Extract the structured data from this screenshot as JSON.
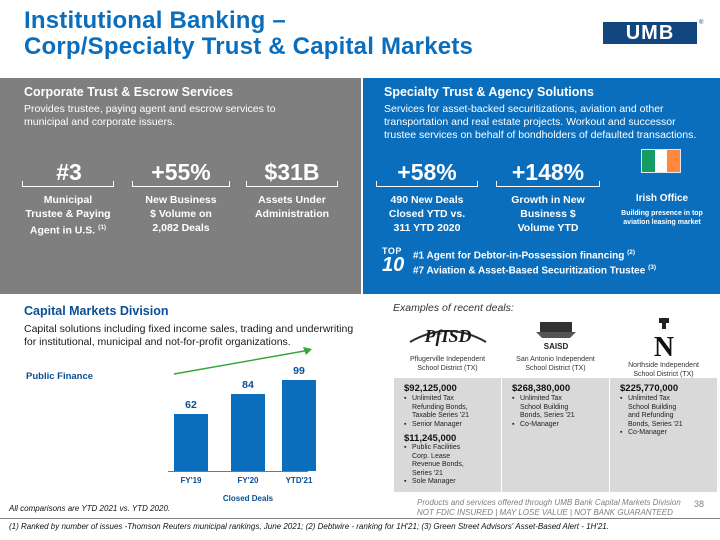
{
  "header": {
    "title_line1": "Institutional Banking –",
    "title_line2": "Corp/Specialty Trust & Capital Markets",
    "logo": "UMB",
    "logo_reg": "®"
  },
  "corporate_trust": {
    "heading": "Corporate Trust & Escrow Services",
    "desc_line1": "Provides trustee, paying agent and escrow services to",
    "desc_line2": "municipal and corporate issuers.",
    "stats": [
      {
        "big": "#3",
        "line1": "Municipal",
        "line2": "Trustee & Paying",
        "line3": "Agent in U.S.",
        "sup": "(1)"
      },
      {
        "big": "+55%",
        "line1": "New Business",
        "line2": "$ Volume on",
        "line3": "2,082 Deals"
      },
      {
        "big": "$31B",
        "line1": "Assets Under",
        "line2": "Administration"
      }
    ]
  },
  "specialty_trust": {
    "heading": "Specialty Trust & Agency Solutions",
    "desc_line1": "Services for asset-backed securitizations, aviation and other",
    "desc_line2": "transportation and real estate projects. Workout and successor",
    "desc_line3": "trustee services on behalf of bondholders of defaulted transactions.",
    "stats": [
      {
        "big": "+58%",
        "line1": "490 New Deals",
        "line2": "Closed YTD vs.",
        "line3": "311 YTD 2020"
      },
      {
        "big": "+148%",
        "line1": "Growth in New",
        "line2": "Business $",
        "line3": "Volume YTD"
      }
    ],
    "irish_title": "Irish Office",
    "irish_sub_line1": "Building presence in top",
    "irish_sub_line2": "aviation leasing market",
    "flag_colors": [
      "#169b62",
      "#ffffff",
      "#ff883e"
    ],
    "top10_word": "TOP",
    "top10_num": "10",
    "rankings": [
      {
        "text": "#1 Agent for Debtor-in-Possession financing",
        "sup": "(2)"
      },
      {
        "text": "#7 Aviation & Asset-Based Securitization Trustee",
        "sup": "(3)"
      }
    ]
  },
  "capital_markets": {
    "heading": "Capital Markets Division",
    "desc_line1": "Capital solutions including fixed income sales, trading and underwriting",
    "desc_line2": "for institutional, municipal and not-for-profit organizations."
  },
  "chart_data": {
    "type": "bar",
    "title": "Public Finance",
    "xlabel": "Closed Deals",
    "ylabel": "",
    "categories": [
      "FY'19",
      "FY'20",
      "YTD'21"
    ],
    "values": [
      62,
      84,
      99
    ],
    "ylim": [
      0,
      110
    ],
    "grid": false,
    "bar_color": "#0a6ebd",
    "trend_arrow": true,
    "arrow_color": "#3aa63a"
  },
  "examples": {
    "label": "Examples of recent deals:",
    "deals": [
      {
        "logo": "PfISD",
        "issuer_line1": "Pflugerville Independent",
        "issuer_line2": "School District (TX)",
        "amount1": "$92,125,000",
        "bullets1": [
          "Unlimited Tax",
          "Refunding Bonds,",
          "Taxable Series '21"
        ],
        "bullets1b": [
          "Senior Manager"
        ],
        "amount2": "$11,245,000",
        "bullets2": [
          "Public Facilities",
          "Corp. Lease",
          "Revenue Bonds,",
          "Series '21"
        ],
        "bullets2b": [
          "Sole Manager"
        ]
      },
      {
        "logo": "SAISD",
        "issuer_line1": "San Antonio Independent",
        "issuer_line2": "School District (TX)",
        "amount1": "$268,380,000",
        "bullets1": [
          "Unlimited Tax",
          "School Building",
          "Bonds, Series '21"
        ],
        "bullets1b": [
          "Co-Manager"
        ]
      },
      {
        "logo": "N",
        "issuer_line1": "Northside Independent",
        "issuer_line2": "School District (TX)",
        "amount1": "$225,770,000",
        "bullets1": [
          "Unlimited Tax",
          "School Building",
          "and Refunding",
          "Bonds, Series '21"
        ],
        "bullets1b": [
          "Co-Manager"
        ]
      }
    ]
  },
  "footer": {
    "disclaimer_line1": "Products and services offered through UMB Bank Capital Markets Division",
    "disclaimer_line2": "NOT FDIC INSURED | MAY LOSE VALUE  | NOT BANK GUARANTEED",
    "comparisons": "All comparisons are YTD 2021 vs. YTD 2020.",
    "footnote": "(1) Ranked by number of issues -Thomson Reuters municipal rankings, June 2021; (2) Debtwire - ranking for 1H'21; (3) Green Street Advisors' Asset-Based Alert - 1H'21.",
    "page": "38"
  }
}
